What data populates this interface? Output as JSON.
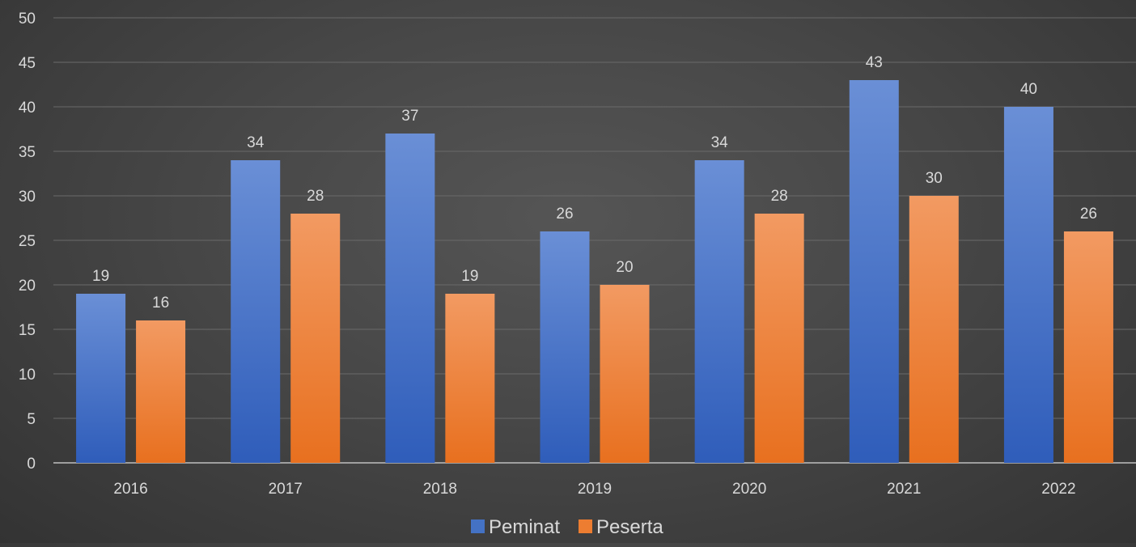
{
  "chart_data": {
    "type": "bar",
    "categories": [
      "2016",
      "2017",
      "2018",
      "2019",
      "2020",
      "2021",
      "2022"
    ],
    "series": [
      {
        "name": "Peminat",
        "values": [
          19,
          34,
          37,
          26,
          34,
          43,
          40
        ],
        "color": "#4472C4"
      },
      {
        "name": "Peserta",
        "values": [
          16,
          28,
          19,
          20,
          28,
          30,
          26
        ],
        "color": "#ED7D31"
      }
    ],
    "ylim": [
      0,
      50
    ],
    "yticks": [
      0,
      5,
      10,
      15,
      20,
      25,
      30,
      35,
      40,
      45,
      50
    ],
    "grid": true,
    "legend": "bottom-center",
    "title": "",
    "xlabel": "",
    "ylabel": ""
  }
}
